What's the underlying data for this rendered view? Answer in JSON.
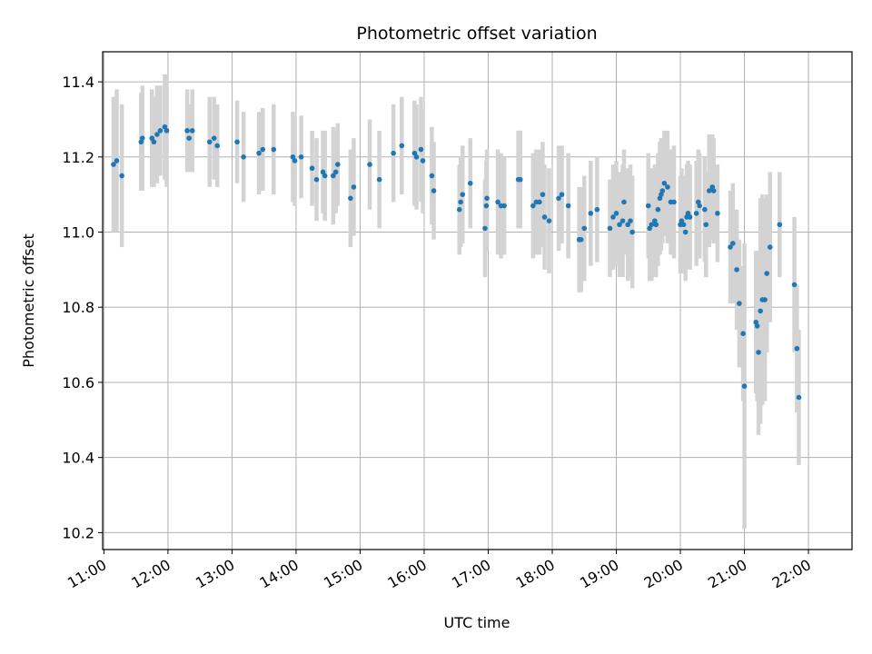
{
  "chart_data": {
    "type": "scatter",
    "title": "Photometric offset variation",
    "xlabel": "UTC time",
    "ylabel": "Photometric offset",
    "x_unit": "hours (UTC)",
    "xlim": [
      10.98,
      22.68
    ],
    "ylim": [
      10.155,
      11.48
    ],
    "xticks": [
      11,
      12,
      13,
      14,
      15,
      16,
      17,
      18,
      19,
      20,
      21,
      22
    ],
    "xtick_labels": [
      "11:00",
      "12:00",
      "13:00",
      "14:00",
      "15:00",
      "16:00",
      "17:00",
      "18:00",
      "19:00",
      "20:00",
      "21:00",
      "22:00"
    ],
    "yticks": [
      10.2,
      10.4,
      10.6,
      10.8,
      11.0,
      11.2,
      11.4
    ],
    "ytick_labels": [
      "10.2",
      "10.4",
      "10.6",
      "10.8",
      "11.0",
      "11.2",
      "11.4"
    ],
    "grid": true,
    "legend": "none",
    "colors": {
      "point": "#1f77b4",
      "errorbar": "#d3d3d3",
      "grid": "#b0b0b0"
    },
    "points": [
      [
        11.15,
        11.18,
        0.18
      ],
      [
        11.2,
        11.19,
        0.19
      ],
      [
        11.28,
        11.15,
        0.19
      ],
      [
        11.58,
        11.24,
        0.13
      ],
      [
        11.6,
        11.25,
        0.14
      ],
      [
        11.75,
        11.25,
        0.13
      ],
      [
        11.78,
        11.24,
        0.12
      ],
      [
        11.83,
        11.26,
        0.13
      ],
      [
        11.88,
        11.27,
        0.12
      ],
      [
        11.95,
        11.28,
        0.14
      ],
      [
        11.98,
        11.27,
        0.15
      ],
      [
        12.3,
        11.27,
        0.11
      ],
      [
        12.33,
        11.25,
        0.09
      ],
      [
        12.38,
        11.27,
        0.11
      ],
      [
        12.65,
        11.24,
        0.12
      ],
      [
        12.72,
        11.25,
        0.11
      ],
      [
        12.77,
        11.23,
        0.11
      ],
      [
        13.08,
        11.24,
        0.11
      ],
      [
        13.18,
        11.2,
        0.12
      ],
      [
        13.42,
        11.21,
        0.11
      ],
      [
        13.48,
        11.22,
        0.11
      ],
      [
        13.65,
        11.22,
        0.12
      ],
      [
        13.95,
        11.2,
        0.12
      ],
      [
        13.98,
        11.19,
        0.12
      ],
      [
        14.08,
        11.2,
        0.11
      ],
      [
        14.25,
        11.17,
        0.1
      ],
      [
        14.32,
        11.14,
        0.11
      ],
      [
        14.42,
        11.16,
        0.11
      ],
      [
        14.45,
        11.15,
        0.12
      ],
      [
        14.58,
        11.15,
        0.13
      ],
      [
        14.62,
        11.16,
        0.11
      ],
      [
        14.65,
        11.18,
        0.11
      ],
      [
        14.85,
        11.09,
        0.13
      ],
      [
        14.9,
        11.12,
        0.13
      ],
      [
        15.15,
        11.18,
        0.12
      ],
      [
        15.3,
        11.14,
        0.13
      ],
      [
        15.52,
        11.21,
        0.13
      ],
      [
        15.65,
        11.23,
        0.13
      ],
      [
        15.85,
        11.21,
        0.14
      ],
      [
        15.88,
        11.2,
        0.14
      ],
      [
        15.95,
        11.22,
        0.14
      ],
      [
        15.98,
        11.19,
        0.14
      ],
      [
        16.12,
        11.15,
        0.13
      ],
      [
        16.15,
        11.11,
        0.13
      ],
      [
        16.55,
        11.06,
        0.12
      ],
      [
        16.57,
        11.08,
        0.12
      ],
      [
        16.6,
        11.1,
        0.13
      ],
      [
        16.72,
        11.13,
        0.12
      ],
      [
        16.95,
        11.01,
        0.13
      ],
      [
        16.97,
        11.07,
        0.12
      ],
      [
        16.98,
        11.09,
        0.13
      ],
      [
        17.15,
        11.08,
        0.14
      ],
      [
        17.2,
        11.07,
        0.14
      ],
      [
        17.25,
        11.07,
        0.13
      ],
      [
        17.47,
        11.14,
        0.13
      ],
      [
        17.5,
        11.14,
        0.13
      ],
      [
        17.7,
        11.07,
        0.14
      ],
      [
        17.75,
        11.08,
        0.14
      ],
      [
        17.8,
        11.08,
        0.14
      ],
      [
        17.85,
        11.1,
        0.14
      ],
      [
        17.88,
        11.04,
        0.14
      ],
      [
        17.95,
        11.03,
        0.14
      ],
      [
        18.1,
        11.09,
        0.14
      ],
      [
        18.15,
        11.1,
        0.13
      ],
      [
        18.25,
        11.07,
        0.14
      ],
      [
        18.42,
        10.98,
        0.14
      ],
      [
        18.45,
        10.98,
        0.14
      ],
      [
        18.5,
        11.01,
        0.14
      ],
      [
        18.6,
        11.05,
        0.14
      ],
      [
        18.7,
        11.06,
        0.14
      ],
      [
        18.9,
        11.01,
        0.13
      ],
      [
        18.95,
        11.04,
        0.14
      ],
      [
        19.0,
        11.05,
        0.14
      ],
      [
        19.05,
        11.02,
        0.14
      ],
      [
        19.1,
        11.03,
        0.15
      ],
      [
        19.12,
        11.08,
        0.14
      ],
      [
        19.18,
        11.02,
        0.15
      ],
      [
        19.22,
        11.03,
        0.15
      ],
      [
        19.25,
        11.0,
        0.15
      ],
      [
        19.5,
        11.07,
        0.14
      ],
      [
        19.52,
        11.01,
        0.14
      ],
      [
        19.55,
        11.02,
        0.15
      ],
      [
        19.6,
        11.03,
        0.15
      ],
      [
        19.62,
        11.02,
        0.14
      ],
      [
        19.65,
        11.06,
        0.15
      ],
      [
        19.68,
        11.09,
        0.15
      ],
      [
        19.7,
        11.1,
        0.15
      ],
      [
        19.72,
        11.11,
        0.14
      ],
      [
        19.75,
        11.13,
        0.14
      ],
      [
        19.8,
        11.12,
        0.15
      ],
      [
        19.85,
        11.08,
        0.14
      ],
      [
        19.9,
        11.08,
        0.15
      ],
      [
        20.0,
        11.02,
        0.13
      ],
      [
        20.02,
        11.03,
        0.14
      ],
      [
        20.05,
        11.02,
        0.13
      ],
      [
        20.08,
        11.0,
        0.13
      ],
      [
        20.1,
        11.04,
        0.14
      ],
      [
        20.12,
        11.05,
        0.14
      ],
      [
        20.15,
        11.04,
        0.14
      ],
      [
        20.25,
        11.05,
        0.14
      ],
      [
        20.28,
        11.08,
        0.14
      ],
      [
        20.3,
        11.07,
        0.14
      ],
      [
        20.38,
        11.06,
        0.14
      ],
      [
        20.4,
        11.02,
        0.14
      ],
      [
        20.45,
        11.11,
        0.15
      ],
      [
        20.5,
        11.12,
        0.14
      ],
      [
        20.52,
        11.11,
        0.14
      ],
      [
        20.58,
        11.05,
        0.13
      ],
      [
        20.78,
        10.96,
        0.15
      ],
      [
        20.82,
        10.97,
        0.16
      ],
      [
        20.88,
        10.9,
        0.16
      ],
      [
        20.92,
        10.81,
        0.17
      ],
      [
        20.98,
        10.73,
        0.18
      ],
      [
        21.0,
        10.59,
        0.38
      ],
      [
        21.18,
        10.76,
        0.19
      ],
      [
        21.2,
        10.75,
        0.2
      ],
      [
        21.22,
        10.68,
        0.22
      ],
      [
        21.25,
        10.79,
        0.3
      ],
      [
        21.28,
        10.82,
        0.28
      ],
      [
        21.32,
        10.82,
        0.27
      ],
      [
        21.35,
        10.89,
        0.21
      ],
      [
        21.4,
        10.96,
        0.2
      ],
      [
        21.55,
        11.02,
        0.14
      ],
      [
        21.78,
        10.86,
        0.18
      ],
      [
        21.82,
        10.69,
        0.17
      ],
      [
        21.85,
        10.56,
        0.18
      ]
    ]
  }
}
